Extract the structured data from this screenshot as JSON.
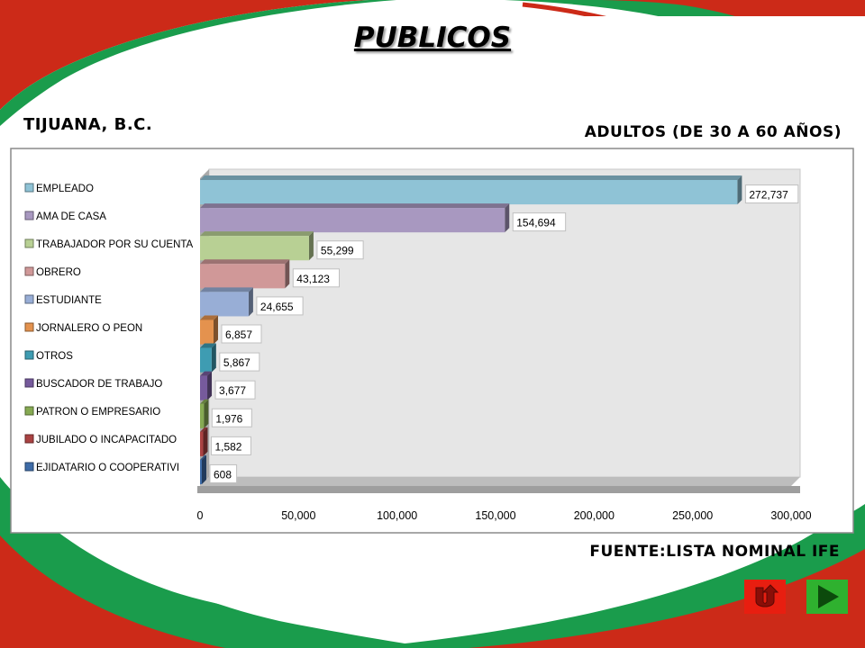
{
  "slide": {
    "title": "PUBLICOS",
    "location": "TIJUANA, B.C.",
    "age_group": "ADULTOS (DE 30 A 60 AÑOS)",
    "source": "FUENTE:LISTA NOMINAL IFE"
  },
  "theme": {
    "red": "#cc2a18",
    "green": "#1a9c4c",
    "panel": "#e6e6e6"
  },
  "nav": [
    {
      "icon": "return-u-turn-icon",
      "color": "#e81e10"
    },
    {
      "icon": "next-arrow-icon",
      "color": "#2fb12f"
    }
  ],
  "chart_data": {
    "type": "bar",
    "orientation": "horizontal",
    "categories": [
      "EMPLEADO",
      "AMA DE CASA",
      "TRABAJADOR POR SU CUENTA",
      "OBRERO",
      "ESTUDIANTE",
      "JORNALERO O PEON",
      "OTROS",
      "BUSCADOR DE TRABAJO",
      "PATRON O EMPRESARIO",
      "JUBILADO O INCAPACITADO",
      "EJIDATARIO O COOPERATIVI"
    ],
    "values": [
      272737,
      154694,
      55299,
      43123,
      24655,
      6857,
      5867,
      3677,
      1976,
      1582,
      608
    ],
    "value_labels": [
      "272,737",
      "154,694",
      "55,299",
      "43,123",
      "24,655",
      "6,857",
      "5,867",
      "3,677",
      "1,976",
      "1,582",
      "608"
    ],
    "colors": [
      "#8fc3d6",
      "#a898c0",
      "#b8d094",
      "#d09898",
      "#98aed6",
      "#e4924e",
      "#3e9cb2",
      "#765a9c",
      "#86aa52",
      "#aa4242",
      "#3e6ca8"
    ],
    "xlim": [
      0,
      300000
    ],
    "xticks": [
      0,
      50000,
      100000,
      150000,
      200000,
      250000,
      300000
    ],
    "xtick_labels": [
      "0",
      "50,000",
      "100,000",
      "150,000",
      "200,000",
      "250,000",
      "300,000"
    ],
    "legend": "left",
    "grid": false
  }
}
